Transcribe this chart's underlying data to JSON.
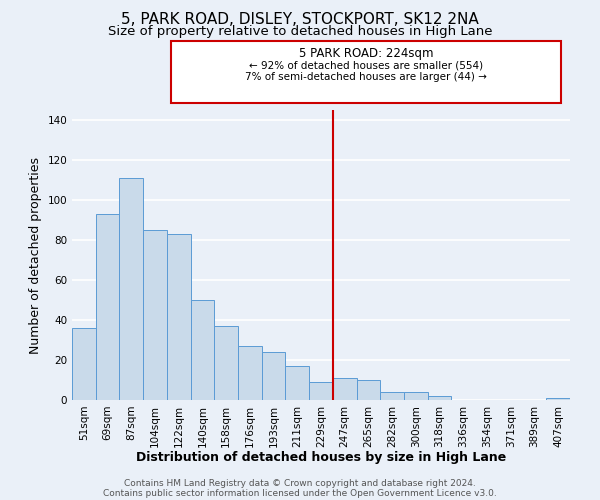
{
  "title": "5, PARK ROAD, DISLEY, STOCKPORT, SK12 2NA",
  "subtitle": "Size of property relative to detached houses in High Lane",
  "xlabel": "Distribution of detached houses by size in High Lane",
  "ylabel": "Number of detached properties",
  "bar_labels": [
    "51sqm",
    "69sqm",
    "87sqm",
    "104sqm",
    "122sqm",
    "140sqm",
    "158sqm",
    "176sqm",
    "193sqm",
    "211sqm",
    "229sqm",
    "247sqm",
    "265sqm",
    "282sqm",
    "300sqm",
    "318sqm",
    "336sqm",
    "354sqm",
    "371sqm",
    "389sqm",
    "407sqm"
  ],
  "bar_heights": [
    36,
    93,
    111,
    85,
    83,
    50,
    37,
    27,
    24,
    17,
    9,
    11,
    10,
    4,
    4,
    2,
    0,
    0,
    0,
    0,
    1
  ],
  "bar_color": "#c9daea",
  "bar_edge_color": "#5b9bd5",
  "ylim": [
    0,
    145
  ],
  "yticks": [
    0,
    20,
    40,
    60,
    80,
    100,
    120,
    140
  ],
  "vline_x": 10.5,
  "vline_color": "#cc0000",
  "annotation_title": "5 PARK ROAD: 224sqm",
  "annotation_line1": "← 92% of detached houses are smaller (554)",
  "annotation_line2": "7% of semi-detached houses are larger (44) →",
  "annotation_box_color": "#cc0000",
  "footer_line1": "Contains HM Land Registry data © Crown copyright and database right 2024.",
  "footer_line2": "Contains public sector information licensed under the Open Government Licence v3.0.",
  "background_color": "#eaf0f8",
  "grid_color": "#ffffff",
  "title_fontsize": 11,
  "subtitle_fontsize": 9.5,
  "axis_label_fontsize": 9,
  "tick_fontsize": 7.5,
  "footer_fontsize": 6.5,
  "ann_title_fontsize": 8.5,
  "ann_body_fontsize": 7.5
}
